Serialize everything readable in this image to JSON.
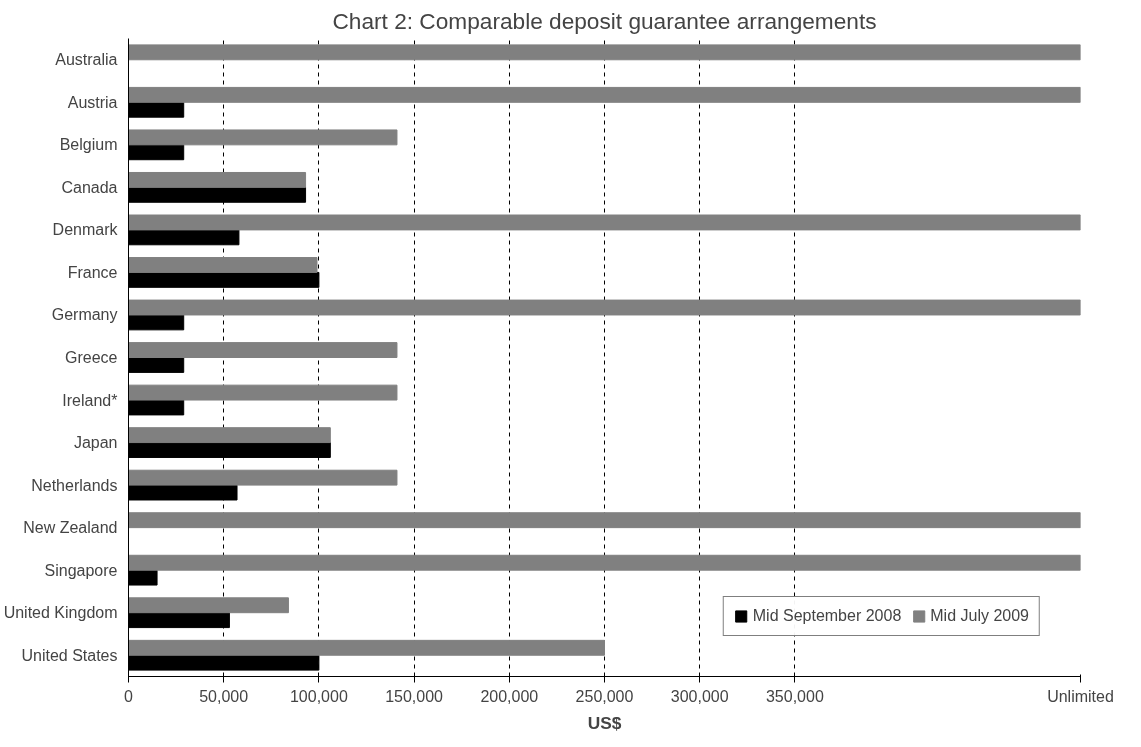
{
  "chart_data": {
    "type": "bar",
    "orientation": "horizontal",
    "title": "Chart 2: Comparable deposit guarantee arrangements",
    "xlabel": "US$",
    "categories": [
      "Australia",
      "Austria",
      "Belgium",
      "Canada",
      "Denmark",
      "France",
      "Germany",
      "Greece",
      "Ireland*",
      "Japan",
      "Netherlands",
      "New Zealand",
      "Singapore",
      "United Kingdom",
      "United States"
    ],
    "series": [
      {
        "name": "Mid September 2008",
        "color": "#000000",
        "values": [
          null,
          29000,
          29000,
          93000,
          58000,
          100000,
          29000,
          29000,
          29000,
          106000,
          57000,
          null,
          15000,
          53000,
          100000
        ]
      },
      {
        "name": "Mid July 2009",
        "color": "#808080",
        "values": [
          500000,
          500000,
          141000,
          93000,
          500000,
          99000,
          500000,
          141000,
          141000,
          106000,
          141000,
          500000,
          500000,
          84000,
          250000
        ]
      }
    ],
    "xlim": [
      0,
      500000
    ],
    "xticks": [
      {
        "value": 0,
        "label": "0"
      },
      {
        "value": 50000,
        "label": "50,000"
      },
      {
        "value": 100000,
        "label": "100,000"
      },
      {
        "value": 150000,
        "label": "150,000"
      },
      {
        "value": 200000,
        "label": "200,000"
      },
      {
        "value": 250000,
        "label": "250,000"
      },
      {
        "value": 300000,
        "label": "300,000"
      },
      {
        "value": 350000,
        "label": "350,000"
      },
      {
        "value": 500000,
        "label": "Unlimited"
      }
    ],
    "grid": "x",
    "legend": "bottom right"
  }
}
